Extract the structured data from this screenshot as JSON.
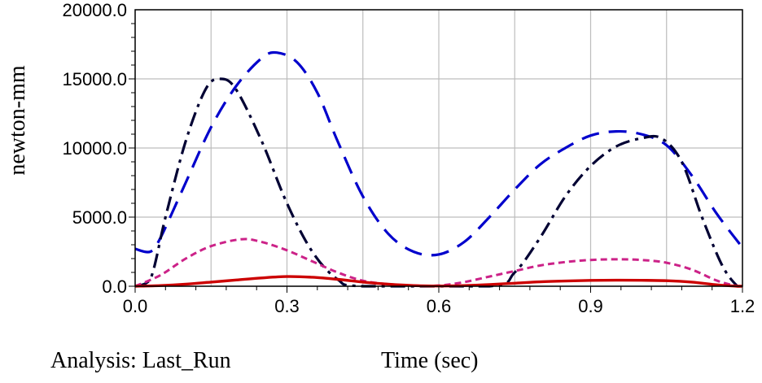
{
  "chart_data": {
    "type": "line",
    "title": "",
    "xlabel": "Time (sec)",
    "ylabel": "newton-mm",
    "xlim": [
      0,
      1.2
    ],
    "ylim": [
      0,
      20000
    ],
    "x_ticks": [
      "0.0",
      "0.3",
      "0.6",
      "0.9",
      "1.2"
    ],
    "y_ticks": [
      "0.0",
      "5000.0",
      "10000.0",
      "15000.0",
      "20000.0"
    ],
    "grid": true,
    "series": [
      {
        "color": "#0000cc",
        "style": "long-dash",
        "points": [
          [
            0,
            2700
          ],
          [
            0.03,
            2500
          ],
          [
            0.05,
            3500
          ],
          [
            0.1,
            7500
          ],
          [
            0.15,
            11500
          ],
          [
            0.2,
            14500
          ],
          [
            0.25,
            16500
          ],
          [
            0.28,
            16900
          ],
          [
            0.32,
            16200
          ],
          [
            0.36,
            14000
          ],
          [
            0.4,
            10500
          ],
          [
            0.45,
            6500
          ],
          [
            0.5,
            3800
          ],
          [
            0.55,
            2500
          ],
          [
            0.6,
            2300
          ],
          [
            0.65,
            3200
          ],
          [
            0.7,
            5000
          ],
          [
            0.75,
            7000
          ],
          [
            0.8,
            8800
          ],
          [
            0.85,
            10000
          ],
          [
            0.9,
            10900
          ],
          [
            0.95,
            11200
          ],
          [
            1.0,
            11000
          ],
          [
            1.05,
            10200
          ],
          [
            1.1,
            8000
          ],
          [
            1.15,
            5200
          ],
          [
            1.2,
            2800
          ]
        ]
      },
      {
        "color": "#000033",
        "style": "dash-dot",
        "points": [
          [
            0,
            0
          ],
          [
            0.03,
            500
          ],
          [
            0.06,
            5000
          ],
          [
            0.1,
            10500
          ],
          [
            0.14,
            14300
          ],
          [
            0.17,
            15000
          ],
          [
            0.2,
            14200
          ],
          [
            0.25,
            10500
          ],
          [
            0.3,
            6000
          ],
          [
            0.35,
            2500
          ],
          [
            0.4,
            500
          ],
          [
            0.45,
            0
          ],
          [
            0.7,
            0
          ],
          [
            0.75,
            1000
          ],
          [
            0.8,
            3500
          ],
          [
            0.85,
            6500
          ],
          [
            0.9,
            8700
          ],
          [
            0.95,
            10100
          ],
          [
            1.0,
            10700
          ],
          [
            1.04,
            10700
          ],
          [
            1.08,
            9000
          ],
          [
            1.12,
            5000
          ],
          [
            1.16,
            1500
          ],
          [
            1.19,
            0
          ],
          [
            1.2,
            0
          ]
        ]
      },
      {
        "color": "#cc2288",
        "style": "short-dash",
        "points": [
          [
            0,
            0
          ],
          [
            0.05,
            800
          ],
          [
            0.1,
            2000
          ],
          [
            0.15,
            2900
          ],
          [
            0.21,
            3400
          ],
          [
            0.25,
            3200
          ],
          [
            0.3,
            2600
          ],
          [
            0.35,
            1800
          ],
          [
            0.4,
            1000
          ],
          [
            0.45,
            400
          ],
          [
            0.5,
            150
          ],
          [
            0.55,
            50
          ],
          [
            0.6,
            50
          ],
          [
            0.65,
            300
          ],
          [
            0.7,
            700
          ],
          [
            0.75,
            1100
          ],
          [
            0.8,
            1500
          ],
          [
            0.85,
            1750
          ],
          [
            0.9,
            1900
          ],
          [
            0.95,
            1950
          ],
          [
            1.0,
            1900
          ],
          [
            1.05,
            1700
          ],
          [
            1.1,
            1200
          ],
          [
            1.15,
            400
          ],
          [
            1.19,
            0
          ],
          [
            1.2,
            0
          ]
        ]
      },
      {
        "color": "#cc0000",
        "style": "solid",
        "points": [
          [
            0,
            0
          ],
          [
            0.05,
            50
          ],
          [
            0.1,
            150
          ],
          [
            0.15,
            300
          ],
          [
            0.2,
            450
          ],
          [
            0.25,
            600
          ],
          [
            0.3,
            700
          ],
          [
            0.35,
            650
          ],
          [
            0.4,
            500
          ],
          [
            0.45,
            300
          ],
          [
            0.5,
            150
          ],
          [
            0.55,
            50
          ],
          [
            0.6,
            20
          ],
          [
            0.65,
            50
          ],
          [
            0.7,
            120
          ],
          [
            0.75,
            220
          ],
          [
            0.8,
            320
          ],
          [
            0.85,
            380
          ],
          [
            0.9,
            420
          ],
          [
            0.95,
            440
          ],
          [
            1.0,
            430
          ],
          [
            1.05,
            400
          ],
          [
            1.1,
            300
          ],
          [
            1.15,
            100
          ],
          [
            1.19,
            0
          ],
          [
            1.2,
            0
          ]
        ]
      }
    ]
  },
  "footer": {
    "analysis_label": "Analysis: Last_Run"
  }
}
